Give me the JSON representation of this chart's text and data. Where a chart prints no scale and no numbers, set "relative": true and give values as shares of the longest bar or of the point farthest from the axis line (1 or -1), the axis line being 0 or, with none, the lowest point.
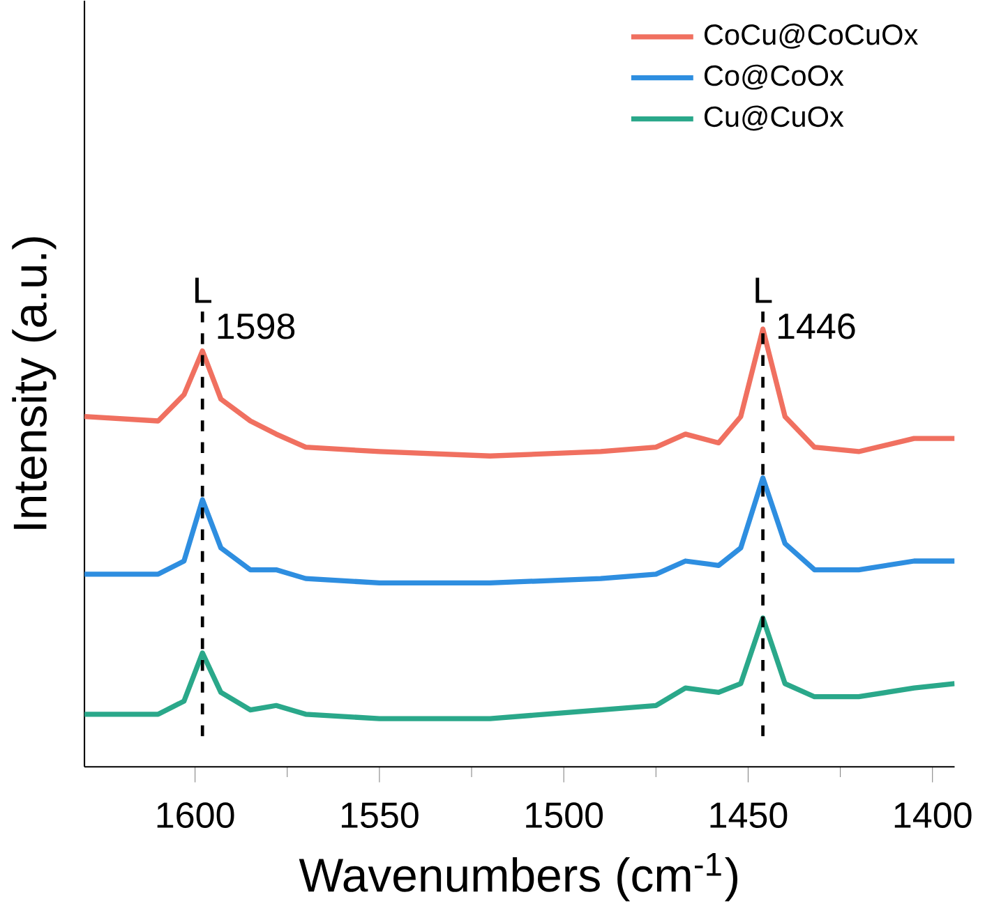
{
  "chart_data": {
    "type": "line",
    "relative": true,
    "xlabel": "Wavenumbers (cm$^{-1}$)",
    "ylabel": "Intensity (a.u.)",
    "xlim": [
      1630,
      1394
    ],
    "xticks": [
      1600,
      1550,
      1500,
      1450,
      1400
    ],
    "legend": "top right",
    "marker": "none",
    "line_style": "solid",
    "grid": false,
    "x": [
      1630,
      1610,
      1603,
      1598,
      1593,
      1585,
      1578,
      1570,
      1550,
      1520,
      1490,
      1475,
      1467,
      1458,
      1452,
      1446,
      1440,
      1432,
      1420,
      1405,
      1394
    ],
    "series": [
      {
        "name": "CoCu@CoCuOx",
        "color": "#f07060",
        "values": [
          0.8,
          0.79,
          0.85,
          0.95,
          0.84,
          0.79,
          0.76,
          0.73,
          0.72,
          0.71,
          0.72,
          0.73,
          0.76,
          0.74,
          0.8,
          1.0,
          0.8,
          0.73,
          0.72,
          0.75,
          0.75
        ]
      },
      {
        "name": "Co@CoOx",
        "color": "#2e8ee0",
        "values": [
          0.44,
          0.44,
          0.47,
          0.61,
          0.5,
          0.45,
          0.45,
          0.43,
          0.42,
          0.42,
          0.43,
          0.44,
          0.47,
          0.46,
          0.5,
          0.66,
          0.51,
          0.45,
          0.45,
          0.47,
          0.47
        ]
      },
      {
        "name": "Cu@CuOx",
        "color": "#2aa88a",
        "values": [
          0.12,
          0.12,
          0.15,
          0.26,
          0.17,
          0.13,
          0.14,
          0.12,
          0.11,
          0.11,
          0.13,
          0.14,
          0.18,
          0.17,
          0.19,
          0.34,
          0.19,
          0.16,
          0.16,
          0.18,
          0.19
        ]
      }
    ],
    "ref_lines": [
      {
        "axis": "x",
        "value": 1598,
        "label": "1598",
        "color": "#000000",
        "line_style": "dashed"
      },
      {
        "axis": "x",
        "value": 1446,
        "label": "1446",
        "color": "#000000",
        "line_style": "dashed"
      }
    ],
    "annotations": [
      "L",
      "L"
    ]
  }
}
